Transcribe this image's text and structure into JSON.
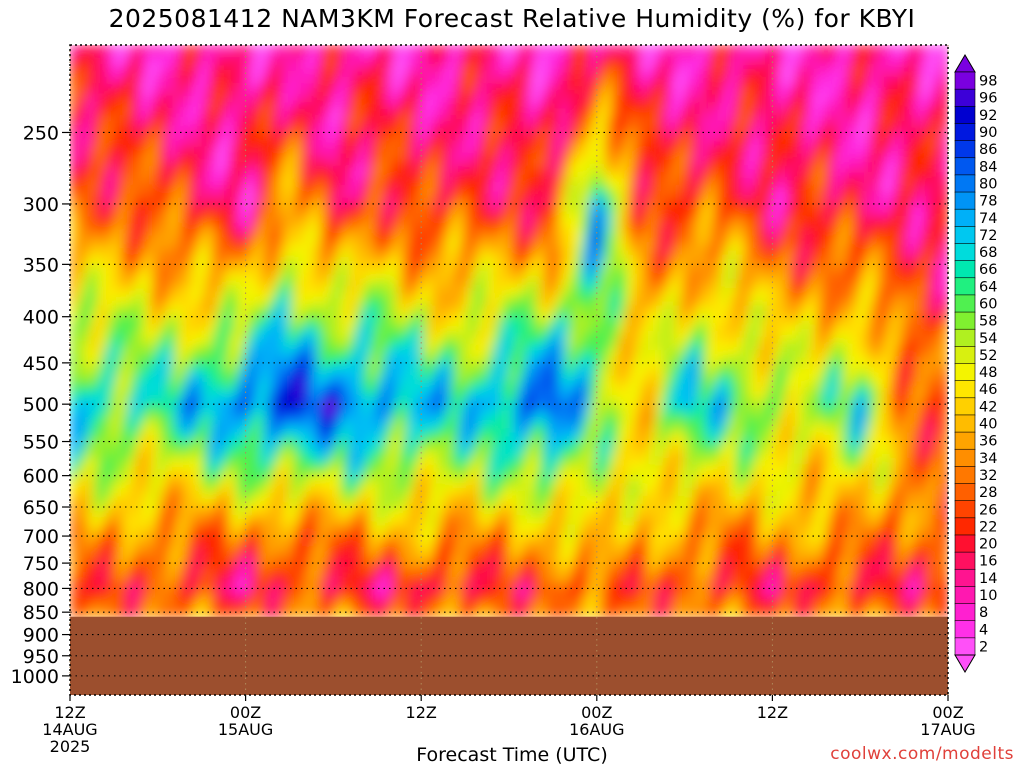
{
  "chart_data": {
    "type": "heatmap",
    "title": "2025081412 NAM3KM Forecast Relative Humidity (%) for KBYI",
    "xlabel": "Forecast Time (UTC)",
    "ylabel": "",
    "y_scale": "log",
    "y_inverted": true,
    "ylim": [
      1050,
      200
    ],
    "xlim_hours": [
      0,
      60
    ],
    "y_ticks": [
      250,
      300,
      350,
      400,
      450,
      500,
      550,
      600,
      650,
      700,
      750,
      800,
      850,
      900,
      950,
      1000
    ],
    "x_ticks": [
      {
        "hour": 0,
        "line1": "12Z",
        "line2": "14AUG",
        "line3": "2025"
      },
      {
        "hour": 12,
        "line1": "00Z",
        "line2": "15AUG",
        "line3": ""
      },
      {
        "hour": 24,
        "line1": "12Z",
        "line2": "",
        "line3": ""
      },
      {
        "hour": 36,
        "line1": "00Z",
        "line2": "16AUG",
        "line3": ""
      },
      {
        "hour": 48,
        "line1": "12Z",
        "line2": "",
        "line3": ""
      },
      {
        "hour": 60,
        "line1": "00Z",
        "line2": "17AUG",
        "line3": ""
      }
    ],
    "grid": true,
    "surface_pressure": 860,
    "colorbar": {
      "levels": [
        98,
        96,
        92,
        90,
        86,
        84,
        80,
        78,
        74,
        72,
        68,
        66,
        64,
        60,
        58,
        54,
        52,
        48,
        46,
        42,
        40,
        36,
        34,
        32,
        28,
        26,
        22,
        20,
        16,
        14,
        10,
        8,
        4,
        2
      ],
      "colors": [
        "#7a00e0",
        "#3c00d8",
        "#0000d0",
        "#0018e0",
        "#0038ea",
        "#0058f0",
        "#0078f4",
        "#0094f6",
        "#00b0f8",
        "#00c8f0",
        "#00dcdc",
        "#00e8b0",
        "#20f080",
        "#50f050",
        "#80f030",
        "#b0f020",
        "#d8f010",
        "#f4f400",
        "#ffe600",
        "#ffd000",
        "#ffbc00",
        "#ffa400",
        "#ff8e00",
        "#ff7800",
        "#ff6000",
        "#ff4400",
        "#ff2800",
        "#ff1030",
        "#ff1060",
        "#ff1490",
        "#ff18b0",
        "#ff20d0",
        "#ff30e8",
        "#ff50f8"
      ]
    },
    "series": [
      {
        "hours": [
          0,
          6,
          12,
          15,
          18,
          21,
          24,
          27,
          30,
          33,
          36,
          39,
          42,
          45,
          48,
          51,
          54,
          57,
          60
        ],
        "top_rh_300": [
          30,
          28,
          14,
          40,
          18,
          30,
          22,
          26,
          24,
          20,
          78,
          28,
          24,
          30,
          18,
          22,
          16,
          20,
          18
        ],
        "rh_500": [
          72,
          66,
          84,
          90,
          86,
          80,
          74,
          70,
          80,
          88,
          60,
          46,
          72,
          66,
          60,
          54,
          70,
          34,
          28
        ],
        "rh_700": [
          38,
          34,
          32,
          30,
          34,
          36,
          40,
          38,
          36,
          40,
          48,
          40,
          36,
          34,
          36,
          38,
          34,
          32,
          30
        ],
        "rh_800": [
          28,
          26,
          18,
          24,
          22,
          20,
          18,
          22,
          26,
          24,
          30,
          28,
          26,
          24,
          22,
          20,
          24,
          22,
          20
        ]
      }
    ]
  },
  "footer": {
    "credit": "coolwx.com/modelts"
  }
}
